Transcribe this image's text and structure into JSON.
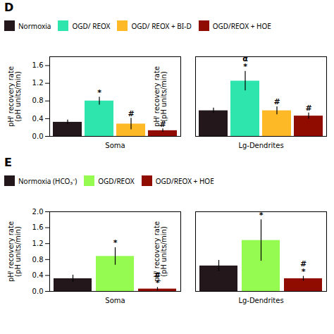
{
  "chart_data": [
    {
      "type": "bar",
      "title": "D",
      "ylabel": "pHᴵ recovery rate\n(pH units/min)",
      "categories": [
        "Soma",
        "Lg-Dendrites"
      ],
      "series": [
        {
          "name": "Normoxia",
          "values": [
            0.32,
            0.58
          ],
          "errors": [
            0.05,
            0.06
          ],
          "annotations": [
            null,
            null
          ]
        },
        {
          "name": "OGD/ REOX",
          "values": [
            0.8,
            1.25
          ],
          "errors": [
            0.09,
            0.22
          ],
          "annotations": [
            "*",
            "α\n*"
          ]
        },
        {
          "name": "OGD/ REOX + BI-D",
          "values": [
            0.28,
            0.58
          ],
          "errors": [
            0.13,
            0.09
          ],
          "annotations": [
            "#",
            "#"
          ]
        },
        {
          "name": "OGD/REOX + HOE",
          "values": [
            0.13,
            0.46
          ],
          "errors": [
            0.04,
            0.07
          ],
          "annotations": [
            "#",
            "#"
          ]
        }
      ],
      "ylim": [
        0.0,
        1.8
      ],
      "yticks": [
        {
          "value": 0.0,
          "label": "0.0"
        },
        0.4,
        0.8,
        1.2,
        1.6
      ],
      "legend": "upper left"
    },
    {
      "type": "bar",
      "title": "E",
      "ylabel": "pHᴵ recovery rate\n(pH units/min)",
      "categories": [
        "Soma",
        "Lg-Dendrites"
      ],
      "series": [
        {
          "name": "Normoxia (HCO₃⁻)",
          "values": [
            0.32,
            0.64
          ],
          "errors": [
            0.09,
            0.14
          ],
          "annotations": [
            null,
            null
          ]
        },
        {
          "name": "OGD/REOX",
          "values": [
            0.88,
            1.28
          ],
          "errors": [
            0.22,
            0.52
          ],
          "annotations": [
            "*",
            "*"
          ]
        },
        {
          "name": "OGD/REOX + HOE",
          "values": [
            0.06,
            0.32
          ],
          "errors": [
            0.04,
            0.06
          ],
          "annotations": [
            "#\n*",
            "#\n*"
          ]
        }
      ],
      "ylim": [
        0.0,
        2.0
      ],
      "yticks": [
        {
          "value": 0.0,
          "label": "0.0"
        },
        0.4,
        0.8,
        1.2,
        1.6,
        {
          "value": 2.0,
          "label": "2.0"
        }
      ],
      "legend": "upper left"
    }
  ]
}
